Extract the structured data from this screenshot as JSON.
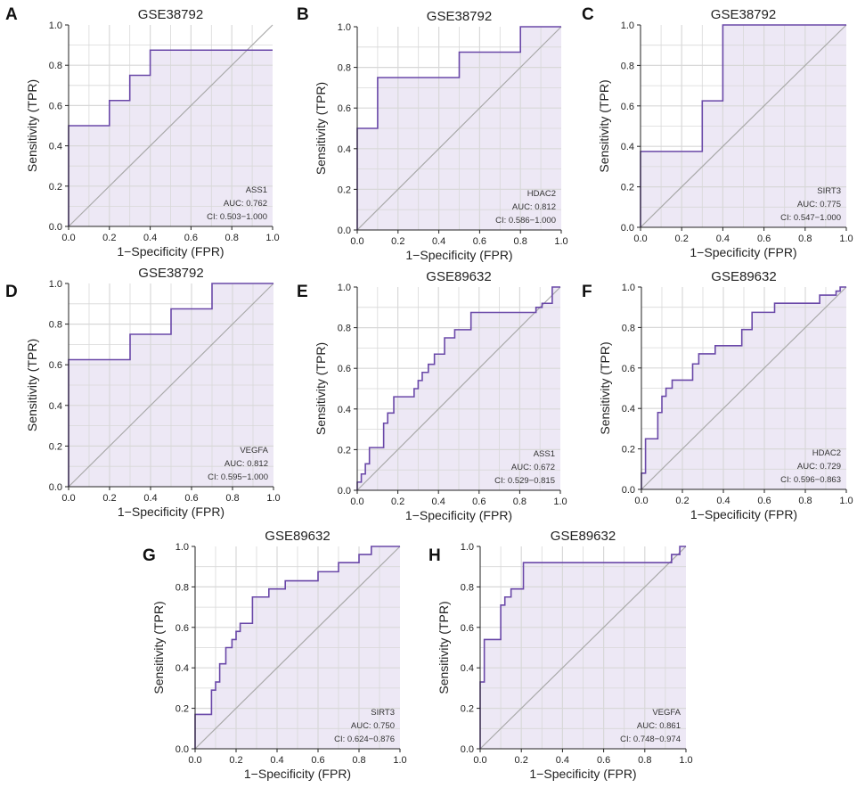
{
  "chart_data": [
    {
      "panel": "A",
      "type": "line",
      "title": "GSE38792",
      "xlabel": "1−Specificity (FPR)",
      "ylabel": "Sensitivity (TPR)",
      "xlim": [
        0,
        1
      ],
      "ylim": [
        0,
        1
      ],
      "x_ticks": [
        "0.0",
        "0.2",
        "0.4",
        "0.6",
        "0.8",
        "1.0"
      ],
      "y_ticks": [
        "0.0",
        "0.2",
        "0.4",
        "0.6",
        "0.8",
        "1.0"
      ],
      "legend": {
        "gene": "ASS1",
        "auc": "AUC: 0.762",
        "ci": "CI: 0.503−1.000"
      },
      "series": [
        {
          "name": "ROC",
          "x": [
            0,
            0,
            0.2,
            0.2,
            0.3,
            0.3,
            0.4,
            0.4,
            1.0
          ],
          "y": [
            0,
            0.5,
            0.5,
            0.625,
            0.625,
            0.75,
            0.75,
            0.875,
            0.875
          ]
        }
      ]
    },
    {
      "panel": "B",
      "type": "line",
      "title": "GSE38792",
      "xlabel": "1−Specificity (FPR)",
      "ylabel": "Sensitivity (TPR)",
      "xlim": [
        0,
        1
      ],
      "ylim": [
        0,
        1
      ],
      "x_ticks": [
        "0.0",
        "0.2",
        "0.4",
        "0.6",
        "0.8",
        "1.0"
      ],
      "y_ticks": [
        "0.0",
        "0.2",
        "0.4",
        "0.6",
        "0.8",
        "1.0"
      ],
      "legend": {
        "gene": "HDAC2",
        "auc": "AUC: 0.812",
        "ci": "CI: 0.586−1.000"
      },
      "series": [
        {
          "name": "ROC",
          "x": [
            0,
            0,
            0.1,
            0.1,
            0.5,
            0.5,
            0.8,
            0.8,
            1.0
          ],
          "y": [
            0,
            0.5,
            0.5,
            0.75,
            0.75,
            0.875,
            0.875,
            1.0,
            1.0
          ]
        }
      ]
    },
    {
      "panel": "C",
      "type": "line",
      "title": "GSE38792",
      "xlabel": "1−Specificity (FPR)",
      "ylabel": "Sensitivity (TPR)",
      "xlim": [
        0,
        1
      ],
      "ylim": [
        0,
        1
      ],
      "x_ticks": [
        "0.0",
        "0.2",
        "0.4",
        "0.6",
        "0.8",
        "1.0"
      ],
      "y_ticks": [
        "0.0",
        "0.2",
        "0.4",
        "0.6",
        "0.8",
        "1.0"
      ],
      "legend": {
        "gene": "SIRT3",
        "auc": "AUC: 0.775",
        "ci": "CI: 0.547−1.000"
      },
      "series": [
        {
          "name": "ROC",
          "x": [
            0,
            0,
            0.3,
            0.3,
            0.4,
            0.4,
            1.0
          ],
          "y": [
            0,
            0.375,
            0.375,
            0.625,
            0.625,
            1.0,
            1.0
          ]
        }
      ]
    },
    {
      "panel": "D",
      "type": "line",
      "title": "GSE38792",
      "xlabel": "1−Specificity (FPR)",
      "ylabel": "Sensitivity (TPR)",
      "xlim": [
        0,
        1
      ],
      "ylim": [
        0,
        1
      ],
      "x_ticks": [
        "0.0",
        "0.2",
        "0.4",
        "0.6",
        "0.8",
        "1.0"
      ],
      "y_ticks": [
        "0.0",
        "0.2",
        "0.4",
        "0.6",
        "0.8",
        "1.0"
      ],
      "legend": {
        "gene": "VEGFA",
        "auc": "AUC: 0.812",
        "ci": "CI: 0.595−1.000"
      },
      "series": [
        {
          "name": "ROC",
          "x": [
            0,
            0,
            0.3,
            0.3,
            0.5,
            0.5,
            0.7,
            0.7,
            1.0
          ],
          "y": [
            0,
            0.625,
            0.625,
            0.75,
            0.75,
            0.875,
            0.875,
            1.0,
            1.0
          ]
        }
      ]
    },
    {
      "panel": "E",
      "type": "line",
      "title": "GSE89632",
      "xlabel": "1−Specificity (FPR)",
      "ylabel": "Sensitivity (TPR)",
      "xlim": [
        0,
        1
      ],
      "ylim": [
        0,
        1
      ],
      "x_ticks": [
        "0.0",
        "0.2",
        "0.4",
        "0.6",
        "0.8",
        "1.0"
      ],
      "y_ticks": [
        "0.0",
        "0.2",
        "0.4",
        "0.6",
        "0.8",
        "1.0"
      ],
      "legend": {
        "gene": "ASS1",
        "auc": "AUC: 0.672",
        "ci": "CI: 0.529−0.815"
      },
      "series": [
        {
          "name": "ROC",
          "x": [
            0,
            0,
            0.02,
            0.02,
            0.04,
            0.04,
            0.06,
            0.06,
            0.13,
            0.13,
            0.15,
            0.15,
            0.18,
            0.18,
            0.28,
            0.28,
            0.3,
            0.3,
            0.32,
            0.32,
            0.35,
            0.35,
            0.38,
            0.38,
            0.43,
            0.43,
            0.48,
            0.48,
            0.56,
            0.56,
            0.88,
            0.88,
            0.91,
            0.91,
            0.96,
            0.96,
            1.0,
            1.0
          ],
          "y": [
            0,
            0.04,
            0.04,
            0.08,
            0.08,
            0.13,
            0.13,
            0.21,
            0.21,
            0.33,
            0.33,
            0.38,
            0.38,
            0.46,
            0.46,
            0.5,
            0.5,
            0.54,
            0.54,
            0.58,
            0.58,
            0.62,
            0.62,
            0.67,
            0.67,
            0.75,
            0.75,
            0.79,
            0.79,
            0.875,
            0.875,
            0.9,
            0.9,
            0.92,
            0.92,
            1.0,
            1.0,
            1.0
          ]
        }
      ]
    },
    {
      "panel": "F",
      "type": "line",
      "title": "GSE89632",
      "xlabel": "1−Specificity (FPR)",
      "ylabel": "Sensitivity (TPR)",
      "xlim": [
        0,
        1
      ],
      "ylim": [
        0,
        1
      ],
      "x_ticks": [
        "0.0",
        "0.2",
        "0.4",
        "0.6",
        "0.8",
        "1.0"
      ],
      "y_ticks": [
        "0.0",
        "0.2",
        "0.4",
        "0.6",
        "0.8",
        "1.0"
      ],
      "legend": {
        "gene": "HDAC2",
        "auc": "AUC: 0.729",
        "ci": "CI: 0.596−0.863"
      },
      "series": [
        {
          "name": "ROC",
          "x": [
            0,
            0,
            0.02,
            0.02,
            0.04,
            0.04,
            0.08,
            0.08,
            0.1,
            0.1,
            0.12,
            0.12,
            0.15,
            0.15,
            0.25,
            0.25,
            0.28,
            0.28,
            0.36,
            0.36,
            0.4,
            0.4,
            0.49,
            0.49,
            0.54,
            0.54,
            0.65,
            0.65,
            0.87,
            0.87,
            0.95,
            0.95,
            0.97,
            0.97,
            1.0
          ],
          "y": [
            0,
            0.08,
            0.08,
            0.25,
            0.25,
            0.25,
            0.25,
            0.38,
            0.38,
            0.46,
            0.46,
            0.5,
            0.5,
            0.54,
            0.54,
            0.62,
            0.62,
            0.67,
            0.67,
            0.71,
            0.71,
            0.71,
            0.71,
            0.79,
            0.79,
            0.875,
            0.875,
            0.92,
            0.92,
            0.96,
            0.96,
            0.98,
            0.98,
            1.0,
            1.0
          ]
        }
      ]
    },
    {
      "panel": "G",
      "type": "line",
      "title": "GSE89632",
      "xlabel": "1−Specificity (FPR)",
      "ylabel": "Sensitivity (TPR)",
      "xlim": [
        0,
        1
      ],
      "ylim": [
        0,
        1
      ],
      "x_ticks": [
        "0.0",
        "0.2",
        "0.4",
        "0.6",
        "0.8",
        "1.0"
      ],
      "y_ticks": [
        "0.0",
        "0.2",
        "0.4",
        "0.6",
        "0.8",
        "1.0"
      ],
      "legend": {
        "gene": "SIRT3",
        "auc": "AUC: 0.750",
        "ci": "CI: 0.624−0.876"
      },
      "series": [
        {
          "name": "ROC",
          "x": [
            0,
            0,
            0.08,
            0.08,
            0.1,
            0.1,
            0.12,
            0.12,
            0.15,
            0.15,
            0.18,
            0.18,
            0.2,
            0.2,
            0.22,
            0.22,
            0.28,
            0.28,
            0.36,
            0.36,
            0.44,
            0.44,
            0.6,
            0.6,
            0.7,
            0.7,
            0.8,
            0.8,
            0.86,
            0.86,
            1.0
          ],
          "y": [
            0,
            0.17,
            0.17,
            0.29,
            0.29,
            0.33,
            0.33,
            0.42,
            0.42,
            0.5,
            0.5,
            0.54,
            0.54,
            0.58,
            0.58,
            0.62,
            0.62,
            0.75,
            0.75,
            0.79,
            0.79,
            0.83,
            0.83,
            0.875,
            0.875,
            0.92,
            0.92,
            0.96,
            0.96,
            1.0,
            1.0
          ]
        }
      ]
    },
    {
      "panel": "H",
      "type": "line",
      "title": "GSE89632",
      "xlabel": "1−Specificity (FPR)",
      "ylabel": "Sensitivity (TPR)",
      "xlim": [
        0,
        1
      ],
      "ylim": [
        0,
        1
      ],
      "x_ticks": [
        "0.0",
        "0.2",
        "0.4",
        "0.6",
        "0.8",
        "1.0"
      ],
      "y_ticks": [
        "0.0",
        "0.2",
        "0.4",
        "0.6",
        "0.8",
        "1.0"
      ],
      "legend": {
        "gene": "VEGFA",
        "auc": "AUC: 0.861",
        "ci": "CI: 0.748−0.974"
      },
      "series": [
        {
          "name": "ROC",
          "x": [
            0,
            0,
            0.02,
            0.02,
            0.04,
            0.04,
            0.1,
            0.1,
            0.12,
            0.12,
            0.15,
            0.15,
            0.17,
            0.17,
            0.21,
            0.21,
            0.93,
            0.93,
            0.97,
            0.97,
            1.0
          ],
          "y": [
            0,
            0.33,
            0.33,
            0.54,
            0.54,
            0.54,
            0.54,
            0.71,
            0.71,
            0.75,
            0.75,
            0.79,
            0.79,
            0.79,
            0.79,
            0.92,
            0.92,
            0.96,
            0.96,
            1.0,
            1.0
          ]
        }
      ]
    }
  ],
  "colors": {
    "curve": "#6a48a8",
    "fill": "#ede8f5",
    "grid": "#d8d8d8",
    "diagonal": "#a9a9a9",
    "axis": "#222222"
  }
}
